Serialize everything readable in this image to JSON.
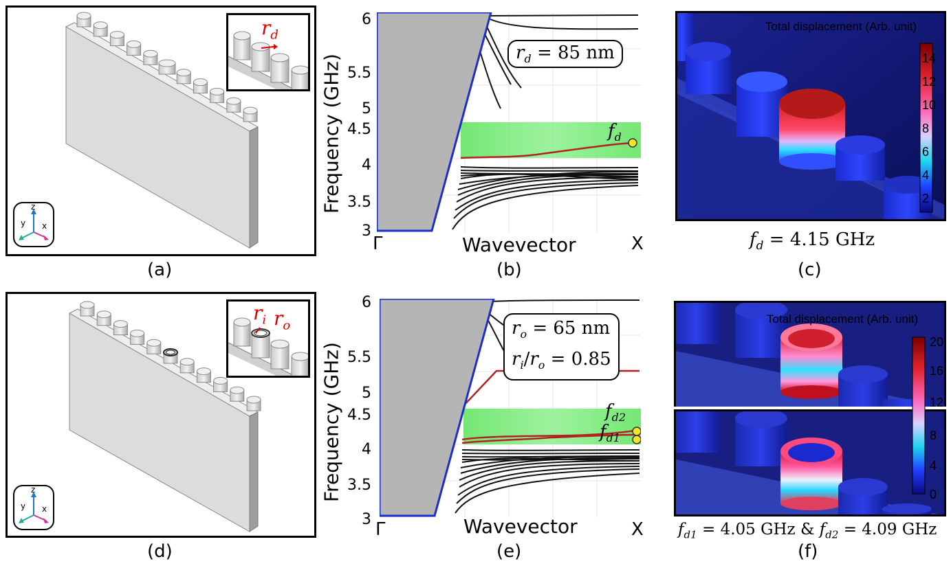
{
  "panels": {
    "a": {
      "label": "(a)",
      "inset_label": "r",
      "inset_sub": "d",
      "axes": {
        "z": "z",
        "y": "y",
        "x": "x"
      }
    },
    "b": {
      "label": "(b)",
      "param": "r",
      "param_sub": "d",
      "param_value": " = 85 nm",
      "marker": "f",
      "marker_sub": "d",
      "ylabel": "Frequency (GHz)",
      "xlabel": "Wavevector",
      "x_left": "Γ",
      "x_right": "X",
      "yticks": [
        "6",
        "5.5",
        "5",
        "4.5",
        "4",
        "3.5",
        "3"
      ]
    },
    "c": {
      "label": "(c)",
      "title": "Total displacement (Arb. unit)",
      "cbar_ticks": [
        "14",
        "12",
        "10",
        "8",
        "6",
        "4",
        "2"
      ],
      "caption_f": "f",
      "caption_sub": "d",
      "caption_value": " = 4.15 GHz"
    },
    "d": {
      "label": "(d)",
      "inset_label1": "r",
      "inset_sub1": "i",
      "inset_label2": "r",
      "inset_sub2": "o",
      "axes": {
        "z": "z",
        "y": "y",
        "x": "x"
      }
    },
    "e": {
      "label": "(e)",
      "param1": "r",
      "param1_sub": "o",
      "param1_value": " = 65 nm",
      "param2_a": "r",
      "param2_a_sub": "i",
      "param2_slash": "/",
      "param2_b": "r",
      "param2_b_sub": "o",
      "param2_value": " = 0.85",
      "marker1": "f",
      "marker1_sub": "d2",
      "marker2": "f",
      "marker2_sub": "d1",
      "ylabel": "Frequency (GHz)",
      "xlabel": "Wavevector",
      "x_left": "Γ",
      "x_right": "X",
      "yticks": [
        "6",
        "5.5",
        "5",
        "4.5",
        "4",
        "3.5",
        "3"
      ]
    },
    "f": {
      "label": "(f)",
      "title": "Total displacement (Arb. unit)",
      "cbar_ticks": [
        "20",
        "16",
        "12",
        "8",
        "4",
        "0"
      ],
      "caption_f1": "f",
      "caption_sub1": "d1",
      "caption_value1": " = 4.05 GHz & ",
      "caption_f2": "f",
      "caption_sub2": "d2",
      "caption_value2": " = 4.09 GHz"
    }
  },
  "chart_data": [
    {
      "type": "line",
      "panel": "b",
      "xlabel": "Wavevector",
      "ylabel": "Frequency (GHz)",
      "ylim": [
        3,
        6
      ],
      "defect_band_freq_GHz": 4.15,
      "bandgap_GHz": [
        4.12,
        4.58
      ],
      "colors": {
        "bands": "#111111",
        "defect": "#b22222",
        "sound_cone": "#b0b0b0",
        "gap": "#33dd33",
        "marker": "#f5e52a"
      }
    },
    {
      "type": "line",
      "panel": "e",
      "xlabel": "Wavevector",
      "ylabel": "Frequency (GHz)",
      "ylim": [
        3,
        6
      ],
      "defect_band_freqs_GHz": [
        4.05,
        4.09
      ],
      "bandgap_GHz": [
        4.05,
        4.52
      ],
      "colors": {
        "bands": "#111111",
        "defect": "#b22222",
        "sound_cone": "#b0b0b0",
        "gap": "#33dd33",
        "marker": "#f5e52a"
      }
    }
  ]
}
